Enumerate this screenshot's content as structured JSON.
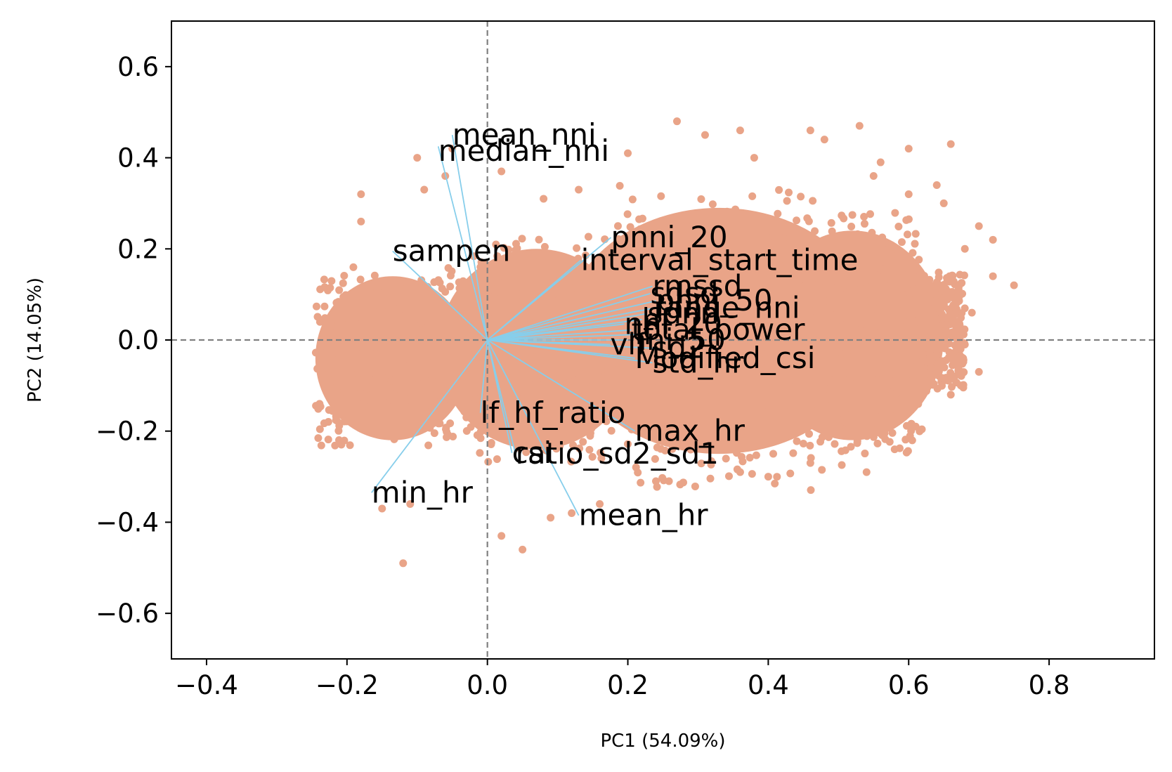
{
  "chart_data": {
    "type": "scatter",
    "title": "",
    "xlabel": "PC1 (54.09%)",
    "ylabel": "PC2 (14.05%)",
    "xlim": [
      -0.45,
      0.95
    ],
    "ylim": [
      -0.7,
      0.7
    ],
    "xticks": [
      -0.4,
      -0.2,
      0.0,
      0.2,
      0.4,
      0.6,
      0.8
    ],
    "yticks": [
      -0.6,
      -0.4,
      -0.2,
      0.0,
      0.2,
      0.4,
      0.6
    ],
    "xtick_labels": [
      "−0.4",
      "−0.2",
      "0.0",
      "0.2",
      "0.4",
      "0.6",
      "0.8"
    ],
    "ytick_labels": [
      "−0.6",
      "−0.4",
      "−0.2",
      "0.0",
      "0.2",
      "0.4",
      "0.6"
    ],
    "grid": false,
    "reference_lines": {
      "x": 0,
      "y": 0,
      "style": "dashed",
      "color": "#808080"
    },
    "colors": {
      "points": "#e9a488",
      "vectors": "#87ceeb",
      "reference": "#808080"
    },
    "scatter_cloud": {
      "x_range": [
        -0.25,
        0.75
      ],
      "y_range": [
        -0.49,
        0.48
      ],
      "outliers": [
        [
          -0.12,
          -0.49
        ],
        [
          0.27,
          0.48
        ],
        [
          0.46,
          0.46
        ],
        [
          0.53,
          0.47
        ],
        [
          -0.18,
          0.32
        ],
        [
          -0.06,
          0.36
        ],
        [
          -0.1,
          0.4
        ],
        [
          0.55,
          0.36
        ],
        [
          0.05,
          -0.46
        ],
        [
          0.09,
          -0.39
        ],
        [
          0.72,
          0.14
        ],
        [
          0.68,
          -0.01
        ],
        [
          0.61,
          -0.19
        ],
        [
          0.65,
          0.3
        ],
        [
          0.7,
          0.25
        ],
        [
          0.66,
          0.43
        ],
        [
          -0.05,
          0.42
        ],
        [
          0.02,
          0.37
        ],
        [
          0.2,
          0.41
        ],
        [
          0.38,
          0.4
        ],
        [
          0.56,
          0.39
        ],
        [
          0.75,
          0.12
        ],
        [
          0.68,
          0.2
        ],
        [
          0.66,
          -0.12
        ],
        [
          0.58,
          -0.24
        ],
        [
          0.46,
          -0.27
        ],
        [
          0.24,
          -0.31
        ],
        [
          0.16,
          -0.36
        ],
        [
          -0.15,
          -0.37
        ],
        [
          -0.18,
          0.26
        ],
        [
          0.64,
          0.34
        ],
        [
          0.6,
          0.42
        ],
        [
          0.48,
          0.44
        ],
        [
          0.36,
          0.46
        ],
        [
          0.31,
          0.45
        ],
        [
          0.13,
          0.33
        ],
        [
          0.08,
          0.31
        ],
        [
          -0.09,
          0.33
        ],
        [
          0.7,
          -0.07
        ],
        [
          0.69,
          0.06
        ],
        [
          0.54,
          -0.29
        ],
        [
          0.36,
          -0.29
        ],
        [
          0.12,
          -0.38
        ],
        [
          -0.11,
          -0.36
        ],
        [
          0.02,
          -0.43
        ],
        [
          0.4,
          -0.3
        ],
        [
          0.72,
          0.22
        ],
        [
          0.6,
          0.32
        ]
      ],
      "scattered_fill_seed": 7
    },
    "loadings": [
      {
        "name": "mean_nni",
        "x": -0.05,
        "y": 0.45,
        "label_dx": 0.0,
        "label_dy": 0.0
      },
      {
        "name": "median_nni",
        "x": -0.07,
        "y": 0.425,
        "label_dx": 0.0,
        "label_dy": -0.01
      },
      {
        "name": "sampen",
        "x": -0.135,
        "y": 0.195,
        "label_dx": 0.0,
        "label_dy": 0.0
      },
      {
        "name": "pnni_20",
        "x": 0.176,
        "y": 0.225,
        "label_dx": 0.0,
        "label_dy": 0.0
      },
      {
        "name": "interval_start_time",
        "x": 0.133,
        "y": 0.175,
        "label_dx": 0.0,
        "label_dy": 0.0
      },
      {
        "name": "rmssd",
        "x": 0.235,
        "y": 0.118,
        "label_dx": 0.0,
        "label_dy": 0.0
      },
      {
        "name": "sdsd",
        "x": 0.232,
        "y": 0.102,
        "label_dx": 0.0,
        "label_dy": 0.0
      },
      {
        "name": "pnni_50",
        "x": 0.24,
        "y": 0.086,
        "label_dx": 0.0,
        "label_dy": 0.0
      },
      {
        "name": "range_nni",
        "x": 0.237,
        "y": 0.07,
        "label_dx": 0.0,
        "label_dy": 0.0
      },
      {
        "name": "sdnn",
        "x": 0.228,
        "y": 0.058,
        "label_dx": 0.0,
        "label_dy": 0.0
      },
      {
        "name": "hf",
        "x": 0.22,
        "y": 0.045,
        "label_dx": 0.0,
        "label_dy": 0.0
      },
      {
        "name": "nni_20",
        "x": 0.195,
        "y": 0.035,
        "label_dx": 0.0,
        "label_dy": 0.0
      },
      {
        "name": "total_power",
        "x": 0.205,
        "y": 0.022,
        "label_dx": 0.0,
        "label_dy": 0.0
      },
      {
        "name": "lf",
        "x": 0.21,
        "y": 0.012,
        "label_dx": 0.0,
        "label_dy": 0.0
      },
      {
        "name": "nni_50",
        "x": 0.2,
        "y": 0.0,
        "label_dx": 0.0,
        "label_dy": 0.0
      },
      {
        "name": "vlf",
        "x": 0.175,
        "y": -0.01,
        "label_dx": 0.0,
        "label_dy": 0.0
      },
      {
        "name": "sd2",
        "x": 0.235,
        "y": -0.018,
        "label_dx": 0.0,
        "label_dy": 0.0
      },
      {
        "name": "Modified_csi",
        "x": 0.21,
        "y": -0.04,
        "label_dx": 0.0,
        "label_dy": 0.0
      },
      {
        "name": "std_hr",
        "x": 0.235,
        "y": -0.05,
        "label_dx": 0.0,
        "label_dy": 0.0
      },
      {
        "name": "lf_hf_ratio",
        "x": -0.01,
        "y": -0.16,
        "label_dx": 0.0,
        "label_dy": 0.0
      },
      {
        "name": "max_hr",
        "x": 0.21,
        "y": -0.2,
        "label_dx": 0.0,
        "label_dy": 0.0
      },
      {
        "name": "ratio_sd2_sd1",
        "x": 0.04,
        "y": -0.25,
        "label_dx": 0.0,
        "label_dy": 0.0
      },
      {
        "name": "csi",
        "x": 0.035,
        "y": -0.248,
        "label_dx": 0.0,
        "label_dy": 0.0
      },
      {
        "name": "min_hr",
        "x": -0.165,
        "y": -0.335,
        "label_dx": 0.0,
        "label_dy": 0.0
      },
      {
        "name": "mean_hr",
        "x": 0.13,
        "y": -0.385,
        "label_dx": 0.0,
        "label_dy": 0.0
      }
    ]
  }
}
